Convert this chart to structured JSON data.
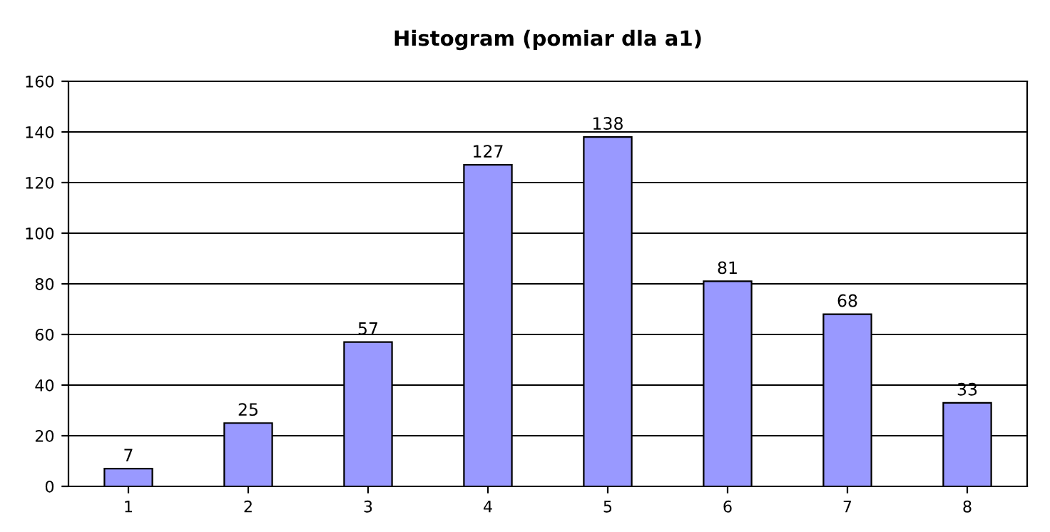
{
  "chart_data": {
    "type": "bar",
    "title": "Histogram (pomiar dla a1)",
    "categories": [
      "1",
      "2",
      "3",
      "4",
      "5",
      "6",
      "7",
      "8"
    ],
    "values": [
      7,
      25,
      57,
      127,
      138,
      81,
      68,
      33
    ],
    "color": "#9999ff",
    "ylim": [
      0,
      160
    ],
    "yticks": [
      0,
      20,
      40,
      60,
      80,
      100,
      120,
      140,
      160
    ],
    "grid": "y",
    "data_labels": true,
    "legend": false
  }
}
